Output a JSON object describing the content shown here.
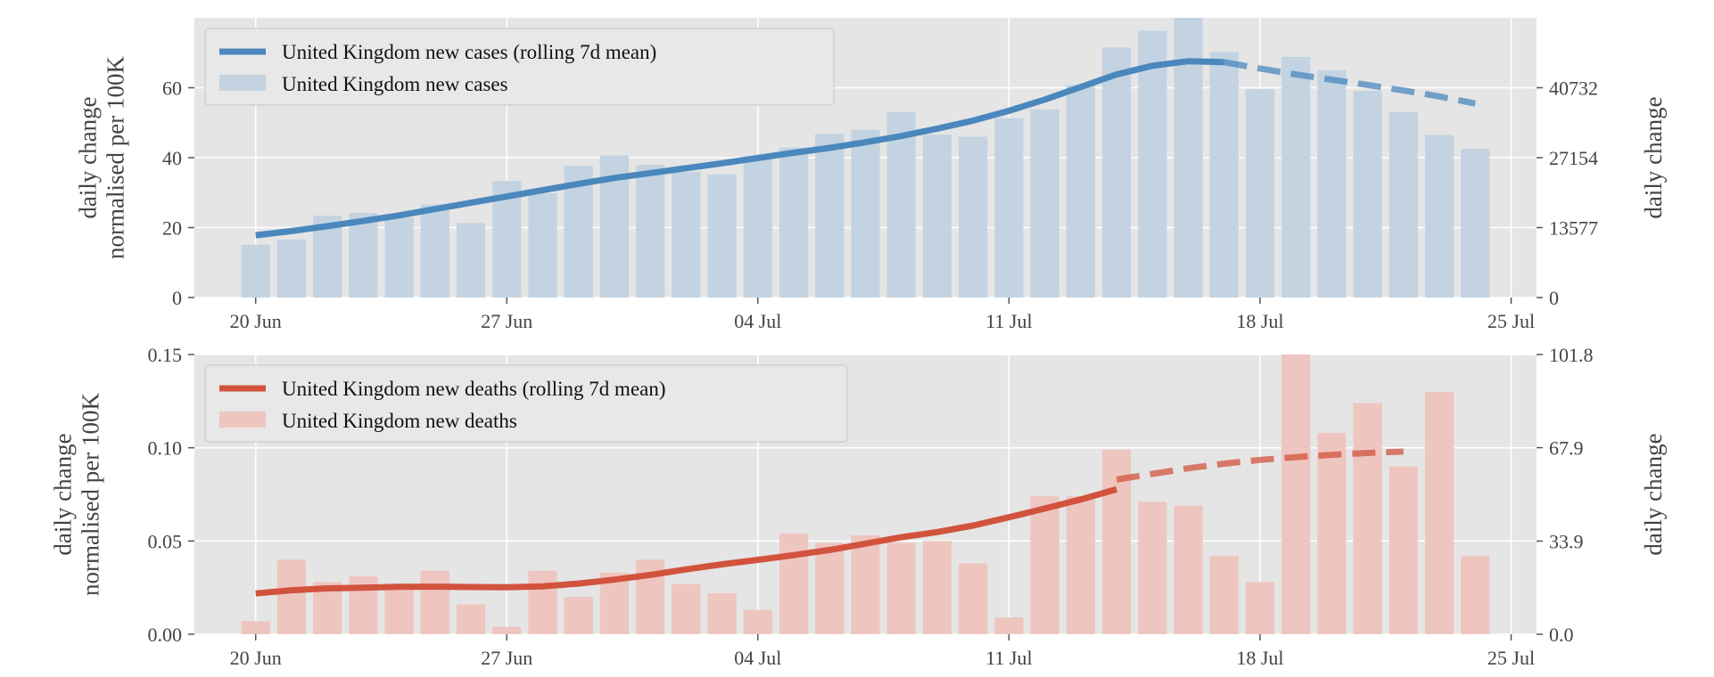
{
  "chart_data": [
    {
      "type": "bar",
      "panel": "top",
      "dates": [
        "2021-06-20",
        "2021-06-21",
        "2021-06-22",
        "2021-06-23",
        "2021-06-24",
        "2021-06-25",
        "2021-06-26",
        "2021-06-27",
        "2021-06-28",
        "2021-06-29",
        "2021-06-30",
        "2021-07-01",
        "2021-07-02",
        "2021-07-03",
        "2021-07-04",
        "2021-07-05",
        "2021-07-06",
        "2021-07-07",
        "2021-07-08",
        "2021-07-09",
        "2021-07-10",
        "2021-07-11",
        "2021-07-12",
        "2021-07-13",
        "2021-07-14",
        "2021-07-15",
        "2021-07-16",
        "2021-07-17",
        "2021-07-18",
        "2021-07-19",
        "2021-07-20",
        "2021-07-21",
        "2021-07-22",
        "2021-07-23",
        "2021-07-24"
      ],
      "x_ticks": [
        "20 Jun",
        "27 Jun",
        "04 Jul",
        "11 Jul",
        "18 Jul",
        "25 Jul"
      ],
      "xlim": [
        "2021-06-18T07:00",
        "2021-07-25T17:00"
      ],
      "ylabel": "daily change\nnormalised per 100K",
      "ylabel_right": "daily change",
      "ylim": [
        0,
        80
      ],
      "y_ticks": [
        "0",
        "20",
        "40",
        "60"
      ],
      "ylim_right": [
        0,
        54310
      ],
      "y_ticks_right": [
        "0",
        "13577",
        "27154",
        "40732"
      ],
      "colors": {
        "line": "#4a87bd",
        "bar": "#c3d3e1"
      },
      "legend": [
        "United Kingdom new cases (rolling 7d mean)",
        "United Kingdom new cases"
      ],
      "legend_position": "upper left",
      "bar_values": [
        15.1,
        16.6,
        23.4,
        24.2,
        22.9,
        26.6,
        21.3,
        33.3,
        29.8,
        37.7,
        40.6,
        37.9,
        36.0,
        35.2,
        40.4,
        42.9,
        46.8,
        48.0,
        53.0,
        46.6,
        46.0,
        51.3,
        53.8,
        60.8,
        71.5,
        76.3,
        80.0,
        70.2,
        59.6,
        68.8,
        65.0,
        59.1,
        53.1,
        46.5,
        42.5
      ],
      "line_values": [
        17.8,
        19.0,
        20.4,
        21.9,
        23.5,
        25.3,
        27.1,
        28.9,
        30.7,
        32.5,
        34.2,
        35.6,
        37.0,
        38.4,
        39.9,
        41.4,
        42.8,
        44.4,
        46.2,
        48.3,
        50.6,
        53.4,
        56.6,
        60.2,
        63.8,
        66.3,
        67.6,
        67.3
      ],
      "projection_values": [
        67.3,
        65.5,
        63.8,
        62.3,
        60.8,
        59.2,
        57.5,
        55.5
      ]
    },
    {
      "type": "bar",
      "panel": "bottom",
      "dates": [
        "2021-06-20",
        "2021-06-21",
        "2021-06-22",
        "2021-06-23",
        "2021-06-24",
        "2021-06-25",
        "2021-06-26",
        "2021-06-27",
        "2021-06-28",
        "2021-06-29",
        "2021-06-30",
        "2021-07-01",
        "2021-07-02",
        "2021-07-03",
        "2021-07-04",
        "2021-07-05",
        "2021-07-06",
        "2021-07-07",
        "2021-07-08",
        "2021-07-09",
        "2021-07-10",
        "2021-07-11",
        "2021-07-12",
        "2021-07-13",
        "2021-07-14",
        "2021-07-15",
        "2021-07-16",
        "2021-07-17",
        "2021-07-18",
        "2021-07-19",
        "2021-07-20",
        "2021-07-21",
        "2021-07-22",
        "2021-07-23",
        "2021-07-24"
      ],
      "x_ticks": [
        "20 Jun",
        "27 Jun",
        "04 Jul",
        "11 Jul",
        "18 Jul",
        "25 Jul"
      ],
      "xlim": [
        "2021-06-18T07:00",
        "2021-07-25T17:00"
      ],
      "ylabel": "daily change\nnormalised per 100K",
      "ylabel_right": "daily change",
      "ylim": [
        0,
        0.15
      ],
      "y_ticks": [
        "0.00",
        "0.05",
        "0.10",
        "0.15"
      ],
      "ylim_right": [
        0,
        101.8
      ],
      "y_ticks_right": [
        "0.0",
        "33.9",
        "67.9",
        "101.8"
      ],
      "colors": {
        "line": "#d2533d",
        "bar": "#efc5c0"
      },
      "legend": [
        "United Kingdom new deaths (rolling 7d mean)",
        "United Kingdom new deaths"
      ],
      "legend_position": "upper left",
      "bar_values": [
        0.007,
        0.04,
        0.028,
        0.031,
        0.024,
        0.034,
        0.016,
        0.004,
        0.034,
        0.02,
        0.033,
        0.04,
        0.027,
        0.022,
        0.013,
        0.054,
        0.049,
        0.053,
        0.049,
        0.05,
        0.038,
        0.009,
        0.074,
        0.074,
        0.099,
        0.071,
        0.069,
        0.042,
        0.028,
        0.15,
        0.108,
        0.124,
        0.09,
        0.13,
        0.042
      ],
      "line_values": [
        0.0219,
        0.0236,
        0.0246,
        0.025,
        0.0254,
        0.0255,
        0.0253,
        0.0252,
        0.0257,
        0.0272,
        0.0293,
        0.0318,
        0.0348,
        0.0375,
        0.0399,
        0.0424,
        0.0452,
        0.0486,
        0.052,
        0.0548,
        0.0583,
        0.0627,
        0.0674,
        0.0723,
        0.0777
      ],
      "projection_values": [
        0.083,
        0.086,
        0.089,
        0.0915,
        0.0935,
        0.095,
        0.0962,
        0.0972,
        0.098
      ]
    }
  ]
}
